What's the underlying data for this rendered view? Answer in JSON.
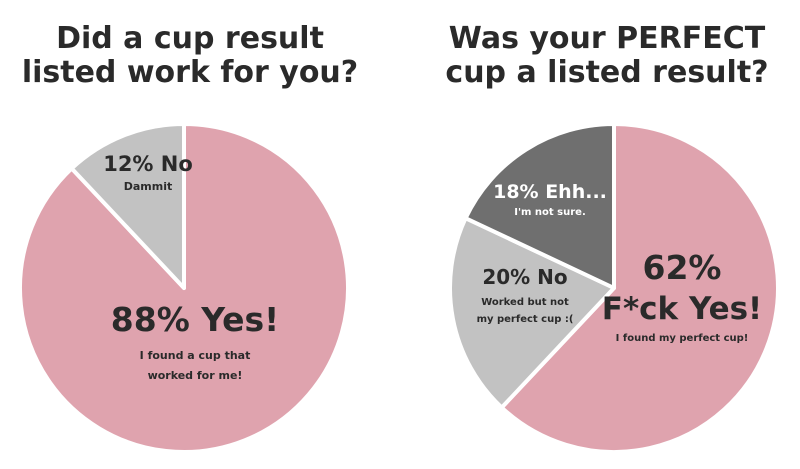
{
  "chart_data": [
    {
      "type": "pie",
      "title_lines": [
        "Did a cup result",
        "listed work for you?"
      ],
      "slices": [
        {
          "percent": 88,
          "label": "88% Yes!",
          "sublabel_lines": [
            "I found a cup that",
            "worked for me!"
          ],
          "color": "#dfa3ae"
        },
        {
          "percent": 12,
          "label": "12% No",
          "sublabel_lines": [
            "Dammit"
          ],
          "color": "#c2c2c2"
        }
      ]
    },
    {
      "type": "pie",
      "title_lines": [
        "Was your PERFECT",
        "cup a listed result?"
      ],
      "slices": [
        {
          "percent": 62,
          "label_lines": [
            "62%",
            "F*ck Yes!"
          ],
          "sublabel_lines": [
            "I found my perfect cup!"
          ],
          "color": "#dfa3ae"
        },
        {
          "percent": 20,
          "label": "20% No",
          "sublabel_lines": [
            "Worked but not",
            "my perfect cup :("
          ],
          "color": "#c2c2c2"
        },
        {
          "percent": 18,
          "label": "18% Ehh...",
          "sublabel_lines": [
            "I'm not sure."
          ],
          "color": "#6f6f6f"
        }
      ]
    }
  ]
}
